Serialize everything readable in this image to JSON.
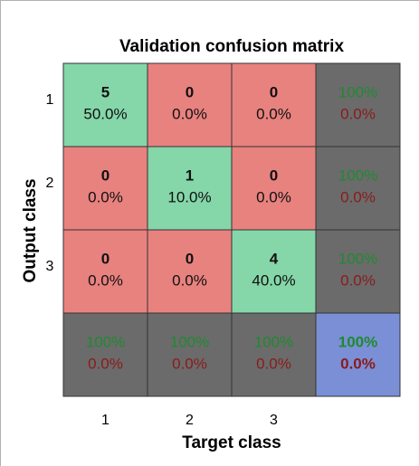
{
  "chart_data": {
    "type": "confusion_matrix",
    "title": "Validation confusion matrix",
    "xlabel": "Target class",
    "ylabel": "Output class",
    "categories": [
      "1",
      "2",
      "3"
    ],
    "counts": [
      [
        5,
        0,
        0
      ],
      [
        0,
        1,
        0
      ],
      [
        0,
        0,
        4
      ]
    ],
    "percents": [
      [
        50,
        0,
        0
      ],
      [
        0,
        10,
        0
      ],
      [
        0,
        0,
        40
      ]
    ],
    "percent_labels": [
      [
        "50.0%",
        "0.0%",
        "0.0%"
      ],
      [
        "0.0%",
        "10.0%",
        "0.0%"
      ],
      [
        "0.0%",
        "0.0%",
        "40.0%"
      ]
    ],
    "row_correct": [
      100,
      100,
      100
    ],
    "row_correct_labels": [
      "100%",
      "100%",
      "100%"
    ],
    "row_error": [
      0,
      0,
      0
    ],
    "row_error_labels": [
      "0.0%",
      "0.0%",
      "0.0%"
    ],
    "col_correct": [
      100,
      100,
      100
    ],
    "col_correct_labels": [
      "100%",
      "100%",
      "100%"
    ],
    "col_error": [
      0,
      0,
      0
    ],
    "col_error_labels": [
      "0.0%",
      "0.0%",
      "0.0%"
    ],
    "overall_correct": 100,
    "overall_correct_label": "100%",
    "overall_error": 0,
    "overall_error_label": "0.0%",
    "colors": {
      "correct": "#85d6a9",
      "wrong": "#e8827f",
      "summary": "#6b6b6b",
      "overall": "#7b8fd6",
      "good_text": "#1f8a30",
      "bad_text": "#8a1b1b"
    }
  }
}
